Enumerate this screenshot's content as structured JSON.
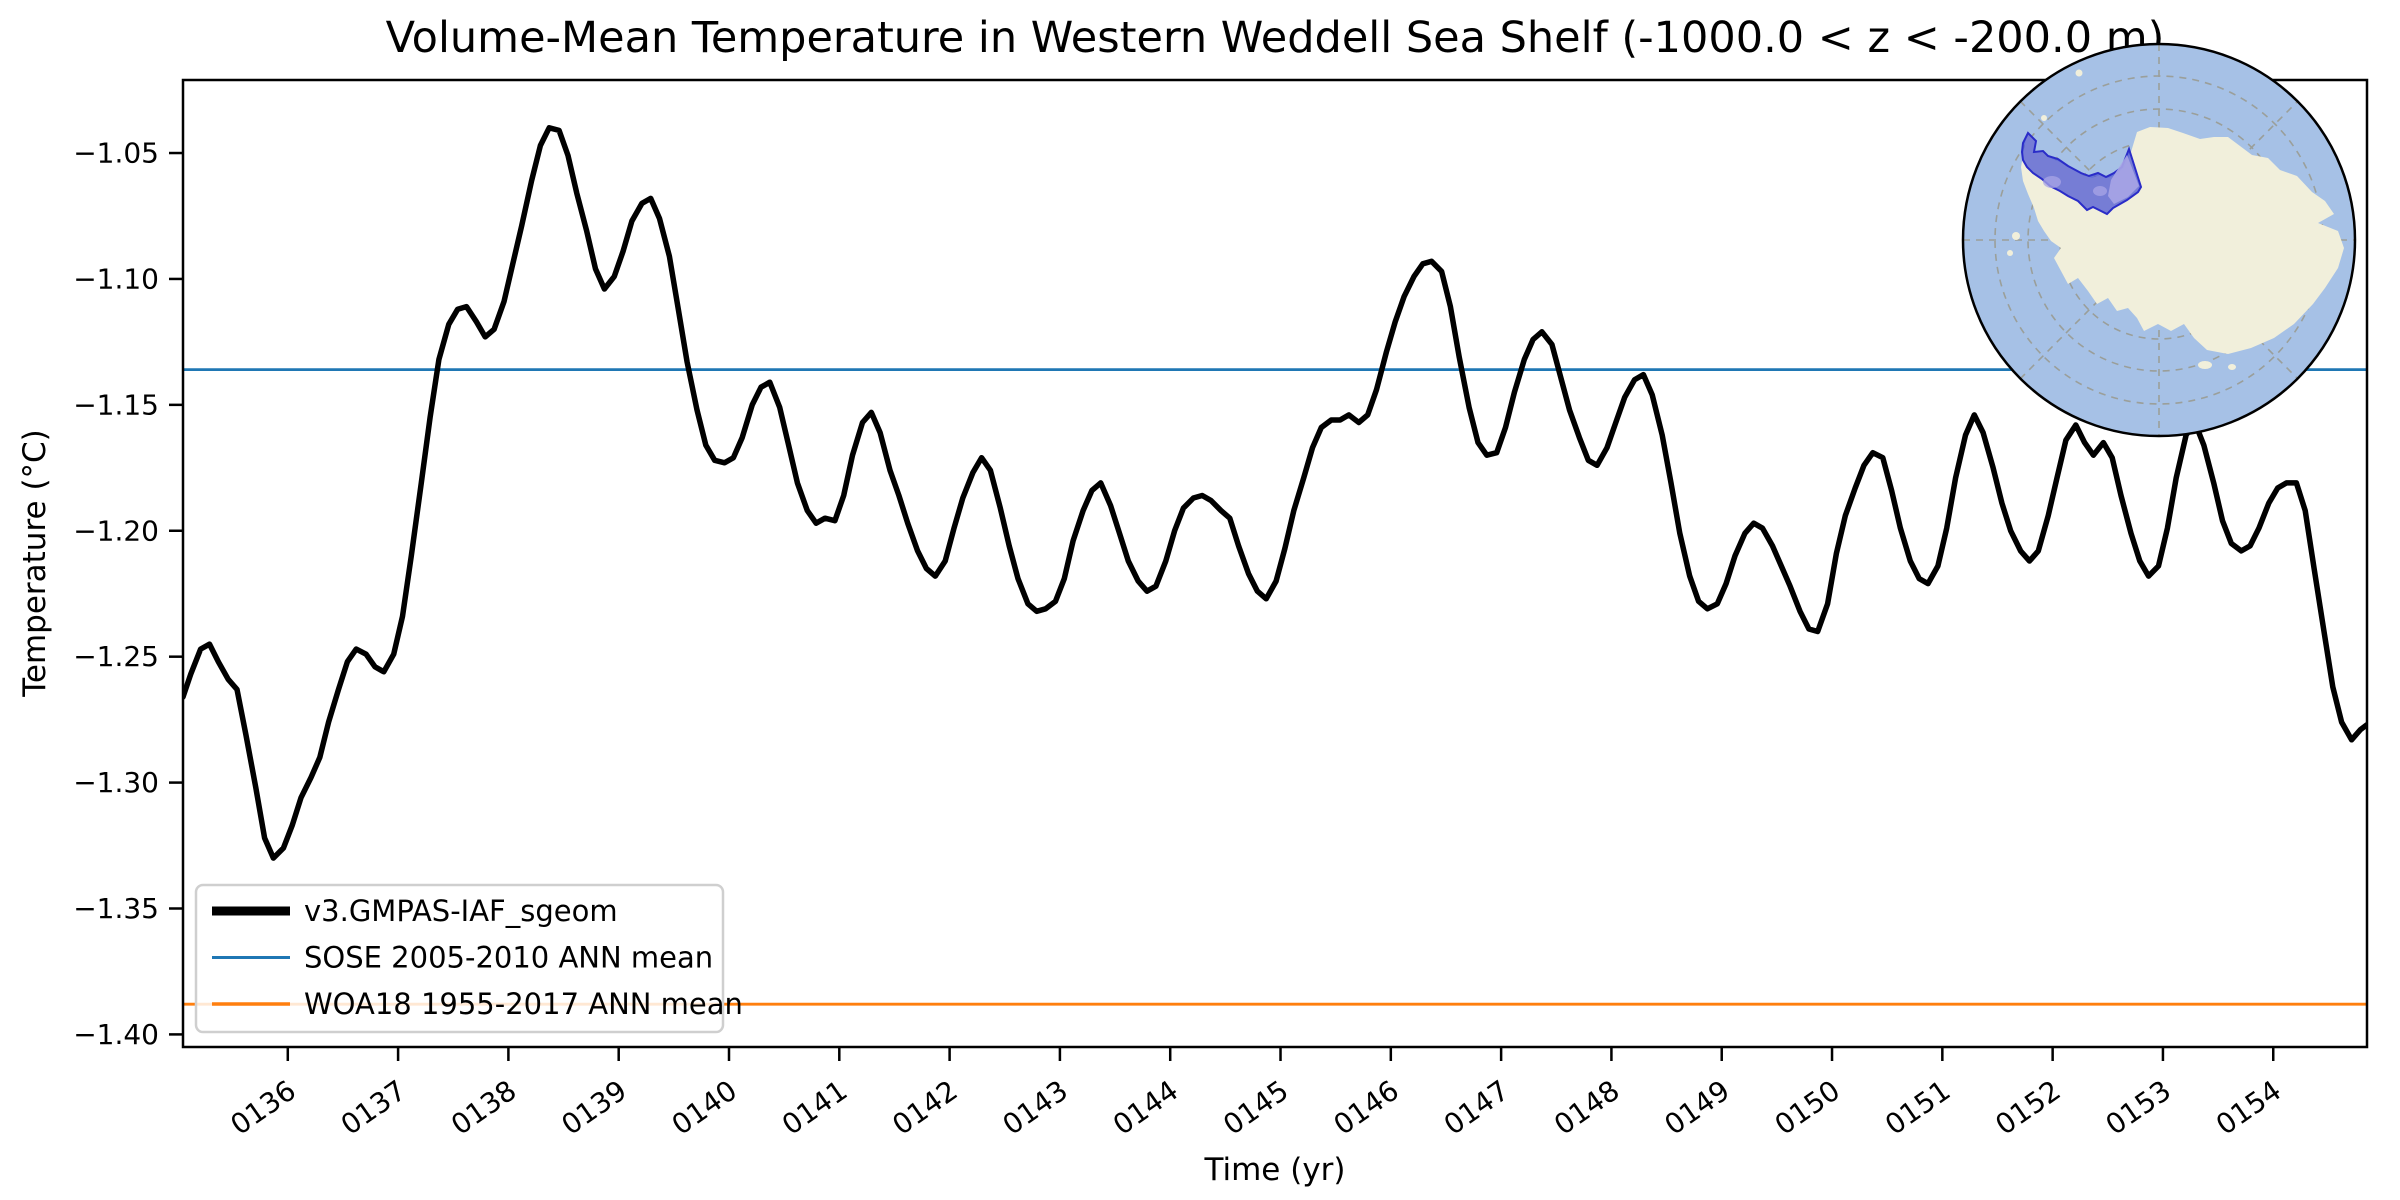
{
  "chart_data": {
    "type": "line",
    "title": "Volume-Mean Temperature in Western Weddell Sea Shelf (-1000.0 < z < -200.0 m)",
    "xlabel": "Time (yr)",
    "ylabel": "Temperature (°C)",
    "xlim": [
      135.05,
      154.85
    ],
    "ylim": [
      -1.405,
      -1.021
    ],
    "grid": false,
    "x_ticks": {
      "values": [
        136,
        137,
        138,
        139,
        140,
        141,
        142,
        143,
        144,
        145,
        146,
        147,
        148,
        149,
        150,
        151,
        152,
        153,
        154
      ],
      "labels": [
        "0136",
        "0137",
        "0138",
        "0139",
        "0140",
        "0141",
        "0142",
        "0143",
        "0144",
        "0145",
        "0146",
        "0147",
        "0148",
        "0149",
        "0150",
        "0151",
        "0152",
        "0153",
        "0154"
      ]
    },
    "y_ticks": {
      "values": [
        -1.05,
        -1.1,
        -1.15,
        -1.2,
        -1.25,
        -1.3,
        -1.35,
        -1.4
      ],
      "labels": [
        "−1.05",
        "−1.10",
        "−1.15",
        "−1.20",
        "−1.25",
        "−1.30",
        "−1.35",
        "−1.40"
      ]
    },
    "series": [
      {
        "name": "v3.GMPAS-IAF_sgeom",
        "type": "line",
        "color": "#000000",
        "linewidth": 5.5,
        "points": [
          [
            135.05,
            -1.266
          ],
          [
            135.12,
            -1.257
          ],
          [
            135.21,
            -1.247
          ],
          [
            135.29,
            -1.245
          ],
          [
            135.37,
            -1.252
          ],
          [
            135.46,
            -1.259
          ],
          [
            135.54,
            -1.263
          ],
          [
            135.62,
            -1.281
          ],
          [
            135.71,
            -1.302
          ],
          [
            135.79,
            -1.322
          ],
          [
            135.87,
            -1.33
          ],
          [
            135.96,
            -1.326
          ],
          [
            136.04,
            -1.317
          ],
          [
            136.12,
            -1.306
          ],
          [
            136.21,
            -1.298
          ],
          [
            136.29,
            -1.29
          ],
          [
            136.37,
            -1.276
          ],
          [
            136.46,
            -1.263
          ],
          [
            136.54,
            -1.252
          ],
          [
            136.62,
            -1.247
          ],
          [
            136.71,
            -1.249
          ],
          [
            136.79,
            -1.254
          ],
          [
            136.87,
            -1.256
          ],
          [
            136.96,
            -1.249
          ],
          [
            137.04,
            -1.234
          ],
          [
            137.12,
            -1.21
          ],
          [
            137.21,
            -1.181
          ],
          [
            137.29,
            -1.155
          ],
          [
            137.37,
            -1.132
          ],
          [
            137.46,
            -1.118
          ],
          [
            137.54,
            -1.112
          ],
          [
            137.62,
            -1.111
          ],
          [
            137.71,
            -1.117
          ],
          [
            137.79,
            -1.123
          ],
          [
            137.87,
            -1.12
          ],
          [
            137.96,
            -1.109
          ],
          [
            138.04,
            -1.094
          ],
          [
            138.12,
            -1.079
          ],
          [
            138.21,
            -1.061
          ],
          [
            138.29,
            -1.047
          ],
          [
            138.37,
            -1.04
          ],
          [
            138.46,
            -1.041
          ],
          [
            138.54,
            -1.051
          ],
          [
            138.62,
            -1.066
          ],
          [
            138.71,
            -1.081
          ],
          [
            138.79,
            -1.096
          ],
          [
            138.87,
            -1.104
          ],
          [
            138.96,
            -1.099
          ],
          [
            139.04,
            -1.089
          ],
          [
            139.12,
            -1.077
          ],
          [
            139.21,
            -1.07
          ],
          [
            139.29,
            -1.068
          ],
          [
            139.37,
            -1.076
          ],
          [
            139.46,
            -1.091
          ],
          [
            139.54,
            -1.112
          ],
          [
            139.62,
            -1.133
          ],
          [
            139.71,
            -1.152
          ],
          [
            139.79,
            -1.166
          ],
          [
            139.87,
            -1.172
          ],
          [
            139.96,
            -1.173
          ],
          [
            140.04,
            -1.171
          ],
          [
            140.12,
            -1.163
          ],
          [
            140.21,
            -1.15
          ],
          [
            140.29,
            -1.143
          ],
          [
            140.37,
            -1.141
          ],
          [
            140.46,
            -1.151
          ],
          [
            140.54,
            -1.166
          ],
          [
            140.62,
            -1.181
          ],
          [
            140.71,
            -1.192
          ],
          [
            140.79,
            -1.197
          ],
          [
            140.87,
            -1.195
          ],
          [
            140.96,
            -1.196
          ],
          [
            141.04,
            -1.186
          ],
          [
            141.12,
            -1.17
          ],
          [
            141.21,
            -1.157
          ],
          [
            141.29,
            -1.153
          ],
          [
            141.37,
            -1.161
          ],
          [
            141.46,
            -1.176
          ],
          [
            141.54,
            -1.186
          ],
          [
            141.62,
            -1.197
          ],
          [
            141.71,
            -1.208
          ],
          [
            141.79,
            -1.215
          ],
          [
            141.87,
            -1.218
          ],
          [
            141.96,
            -1.212
          ],
          [
            142.04,
            -1.199
          ],
          [
            142.12,
            -1.187
          ],
          [
            142.21,
            -1.177
          ],
          [
            142.29,
            -1.171
          ],
          [
            142.37,
            -1.176
          ],
          [
            142.46,
            -1.191
          ],
          [
            142.54,
            -1.206
          ],
          [
            142.62,
            -1.219
          ],
          [
            142.71,
            -1.229
          ],
          [
            142.79,
            -1.232
          ],
          [
            142.87,
            -1.231
          ],
          [
            142.96,
            -1.228
          ],
          [
            143.04,
            -1.219
          ],
          [
            143.12,
            -1.204
          ],
          [
            143.21,
            -1.192
          ],
          [
            143.29,
            -1.184
          ],
          [
            143.37,
            -1.181
          ],
          [
            143.46,
            -1.19
          ],
          [
            143.54,
            -1.201
          ],
          [
            143.62,
            -1.212
          ],
          [
            143.71,
            -1.22
          ],
          [
            143.79,
            -1.224
          ],
          [
            143.87,
            -1.222
          ],
          [
            143.96,
            -1.212
          ],
          [
            144.04,
            -1.2
          ],
          [
            144.12,
            -1.191
          ],
          [
            144.21,
            -1.187
          ],
          [
            144.29,
            -1.186
          ],
          [
            144.37,
            -1.188
          ],
          [
            144.46,
            -1.192
          ],
          [
            144.54,
            -1.195
          ],
          [
            144.62,
            -1.206
          ],
          [
            144.71,
            -1.217
          ],
          [
            144.79,
            -1.224
          ],
          [
            144.87,
            -1.227
          ],
          [
            144.96,
            -1.22
          ],
          [
            145.04,
            -1.207
          ],
          [
            145.12,
            -1.192
          ],
          [
            145.21,
            -1.179
          ],
          [
            145.29,
            -1.167
          ],
          [
            145.37,
            -1.159
          ],
          [
            145.46,
            -1.156
          ],
          [
            145.54,
            -1.156
          ],
          [
            145.62,
            -1.154
          ],
          [
            145.71,
            -1.157
          ],
          [
            145.79,
            -1.154
          ],
          [
            145.87,
            -1.144
          ],
          [
            145.96,
            -1.129
          ],
          [
            146.04,
            -1.117
          ],
          [
            146.12,
            -1.107
          ],
          [
            146.21,
            -1.099
          ],
          [
            146.29,
            -1.094
          ],
          [
            146.37,
            -1.093
          ],
          [
            146.46,
            -1.097
          ],
          [
            146.54,
            -1.111
          ],
          [
            146.62,
            -1.131
          ],
          [
            146.71,
            -1.151
          ],
          [
            146.79,
            -1.165
          ],
          [
            146.87,
            -1.17
          ],
          [
            146.96,
            -1.169
          ],
          [
            147.04,
            -1.159
          ],
          [
            147.12,
            -1.145
          ],
          [
            147.21,
            -1.132
          ],
          [
            147.29,
            -1.124
          ],
          [
            147.37,
            -1.121
          ],
          [
            147.46,
            -1.126
          ],
          [
            147.54,
            -1.139
          ],
          [
            147.62,
            -1.152
          ],
          [
            147.71,
            -1.163
          ],
          [
            147.79,
            -1.172
          ],
          [
            147.87,
            -1.174
          ],
          [
            147.96,
            -1.167
          ],
          [
            148.04,
            -1.157
          ],
          [
            148.12,
            -1.147
          ],
          [
            148.21,
            -1.14
          ],
          [
            148.29,
            -1.138
          ],
          [
            148.37,
            -1.146
          ],
          [
            148.46,
            -1.162
          ],
          [
            148.54,
            -1.181
          ],
          [
            148.62,
            -1.201
          ],
          [
            148.71,
            -1.218
          ],
          [
            148.79,
            -1.228
          ],
          [
            148.87,
            -1.231
          ],
          [
            148.96,
            -1.229
          ],
          [
            149.04,
            -1.221
          ],
          [
            149.12,
            -1.21
          ],
          [
            149.21,
            -1.201
          ],
          [
            149.29,
            -1.197
          ],
          [
            149.37,
            -1.199
          ],
          [
            149.46,
            -1.206
          ],
          [
            149.54,
            -1.214
          ],
          [
            149.62,
            -1.222
          ],
          [
            149.71,
            -1.232
          ],
          [
            149.79,
            -1.239
          ],
          [
            149.87,
            -1.24
          ],
          [
            149.96,
            -1.229
          ],
          [
            150.04,
            -1.209
          ],
          [
            150.12,
            -1.194
          ],
          [
            150.21,
            -1.183
          ],
          [
            150.29,
            -1.174
          ],
          [
            150.37,
            -1.169
          ],
          [
            150.46,
            -1.171
          ],
          [
            150.54,
            -1.184
          ],
          [
            150.62,
            -1.199
          ],
          [
            150.71,
            -1.212
          ],
          [
            150.79,
            -1.219
          ],
          [
            150.87,
            -1.221
          ],
          [
            150.96,
            -1.214
          ],
          [
            151.04,
            -1.199
          ],
          [
            151.12,
            -1.179
          ],
          [
            151.21,
            -1.162
          ],
          [
            151.29,
            -1.154
          ],
          [
            151.37,
            -1.161
          ],
          [
            151.46,
            -1.175
          ],
          [
            151.54,
            -1.189
          ],
          [
            151.62,
            -1.2
          ],
          [
            151.71,
            -1.208
          ],
          [
            151.79,
            -1.212
          ],
          [
            151.87,
            -1.208
          ],
          [
            151.96,
            -1.194
          ],
          [
            152.04,
            -1.179
          ],
          [
            152.12,
            -1.164
          ],
          [
            152.21,
            -1.158
          ],
          [
            152.29,
            -1.165
          ],
          [
            152.37,
            -1.17
          ],
          [
            152.46,
            -1.165
          ],
          [
            152.54,
            -1.171
          ],
          [
            152.62,
            -1.186
          ],
          [
            152.71,
            -1.201
          ],
          [
            152.79,
            -1.212
          ],
          [
            152.87,
            -1.218
          ],
          [
            152.96,
            -1.214
          ],
          [
            153.04,
            -1.199
          ],
          [
            153.12,
            -1.179
          ],
          [
            153.21,
            -1.162
          ],
          [
            153.29,
            -1.157
          ],
          [
            153.37,
            -1.166
          ],
          [
            153.46,
            -1.181
          ],
          [
            153.54,
            -1.196
          ],
          [
            153.62,
            -1.205
          ],
          [
            153.71,
            -1.208
          ],
          [
            153.79,
            -1.206
          ],
          [
            153.87,
            -1.199
          ],
          [
            153.96,
            -1.189
          ],
          [
            154.04,
            -1.183
          ],
          [
            154.12,
            -1.181
          ],
          [
            154.21,
            -1.181
          ],
          [
            154.29,
            -1.192
          ],
          [
            154.37,
            -1.215
          ],
          [
            154.46,
            -1.24
          ],
          [
            154.54,
            -1.262
          ],
          [
            154.62,
            -1.276
          ],
          [
            154.71,
            -1.283
          ],
          [
            154.79,
            -1.279
          ],
          [
            154.85,
            -1.277
          ]
        ]
      },
      {
        "name": "SOSE 2005-2010 ANN mean",
        "type": "hline",
        "color": "#1f77b4",
        "linewidth": 2.8,
        "value": -1.136
      },
      {
        "name": "WOA18 1955-2017 ANN mean",
        "type": "hline",
        "color": "#ff7f0e",
        "linewidth": 2.8,
        "value": -1.388
      }
    ],
    "legend_position": "lower left"
  },
  "legend": {
    "entries": [
      {
        "label": "v3.GMPAS-IAF_sgeom",
        "color": "#000000",
        "sample_width": 9
      },
      {
        "label": "SOSE 2005-2010 ANN mean",
        "color": "#1f77b4",
        "sample_width": 3
      },
      {
        "label": "WOA18 1955-2017 ANN mean",
        "color": "#ff7f0e",
        "sample_width": 3.5
      }
    ]
  },
  "inset_map": {
    "ocean_color": "#a6c1e6",
    "land_color": "#f1efdb",
    "graticule_color": "#99998c",
    "border_color": "#000000",
    "region_fill": "#4650d2",
    "region_fill_light": "#a9a5e6",
    "region_stroke": "#2a2cc8"
  }
}
